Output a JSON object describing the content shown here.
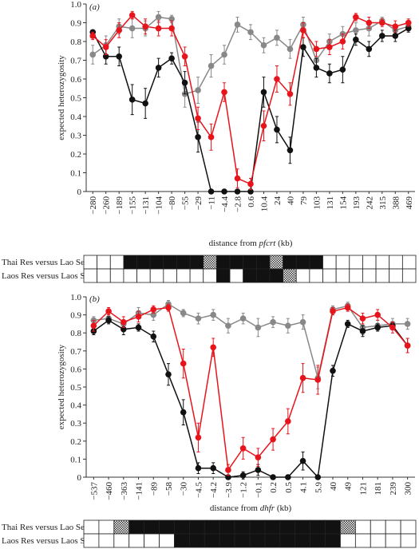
{
  "chart_data": [
    {
      "type": "line",
      "panel_label": "(a)",
      "ylabel": "expected heterozygosity",
      "xlabel": [
        "distance from ",
        "pfcrt",
        " (kb)"
      ],
      "categories": [
        "−280",
        "−260",
        "−189",
        "−155",
        "−131",
        "−104",
        "−80",
        "−55",
        "−29",
        "−11",
        "−4.4",
        "−2.8",
        "0.6",
        "10.4",
        "24",
        "40",
        "79",
        "103",
        "131",
        "154",
        "193",
        "242",
        "315",
        "388",
        "469"
      ],
      "ylim": [
        0,
        1
      ],
      "yticks": [
        0,
        0.1,
        0.2,
        0.3,
        0.4,
        0.5,
        0.6,
        0.7,
        0.8,
        0.9,
        {
          "value": 1,
          "label": "1.0"
        }
      ],
      "series": [
        {
          "color": "#888888",
          "values": [
            0.73,
            0.78,
            0.88,
            0.87,
            0.87,
            0.93,
            0.92,
            0.52,
            0.54,
            0.67,
            0.73,
            0.89,
            0.85,
            0.78,
            0.82,
            0.76,
            0.89,
            0.7,
            0.8,
            0.84,
            0.86,
            0.87,
            0.91,
            0.86,
            0.88
          ],
          "errors": [
            0.05,
            0.05,
            0.04,
            0.05,
            0.04,
            0.03,
            0.02,
            0.07,
            0.07,
            0.06,
            0.05,
            0.04,
            0.04,
            0.04,
            0.04,
            0.05,
            0.04,
            0.05,
            0.04,
            0.04,
            0.04,
            0.04,
            0.02,
            0.03,
            0.02
          ]
        },
        {
          "color": "#111111",
          "values": [
            0.85,
            0.72,
            0.72,
            0.49,
            0.47,
            0.66,
            0.71,
            0.58,
            0.29,
            0,
            0,
            0,
            0,
            0.53,
            0.33,
            0.22,
            0.77,
            0.66,
            0.63,
            0.65,
            0.81,
            0.76,
            0.83,
            0.83,
            0.87
          ],
          "errors": [
            0.01,
            0.04,
            0.05,
            0.08,
            0.08,
            0.05,
            0.03,
            0.06,
            0.08,
            0,
            0,
            0,
            0,
            0.08,
            0.07,
            0.07,
            0.05,
            0.05,
            0.05,
            0.07,
            0.03,
            0.04,
            0.03,
            0.03,
            0.02
          ]
        },
        {
          "color": "#e8141c",
          "values": [
            0.83,
            0.77,
            0.86,
            0.94,
            0.88,
            0.87,
            0.87,
            0.72,
            0.39,
            0.29,
            0.53,
            0.07,
            0.04,
            0.35,
            0.6,
            0.52,
            0.86,
            0.76,
            0.77,
            0.8,
            0.93,
            0.9,
            0.9,
            0.88,
            0.9
          ],
          "errors": [
            0.02,
            0.04,
            0.04,
            0.02,
            0.04,
            0.04,
            0.04,
            0.05,
            0.06,
            0.07,
            0.05,
            0.05,
            0.03,
            0.08,
            0.07,
            0.06,
            0.04,
            0.04,
            0.04,
            0.04,
            0.02,
            0.03,
            0.02,
            0.03,
            0.02
          ]
        }
      ],
      "rows": [
        {
          "label": "Thai Res versus Lao Sen",
          "cells": [
            "white",
            "white",
            "white",
            "black",
            "black",
            "black",
            "black",
            "black",
            "black",
            "hatched",
            "black",
            "black",
            "black",
            "black",
            "hatched",
            "black",
            "black",
            "black",
            "white",
            "white",
            "white",
            "white",
            "white",
            "white",
            "white"
          ]
        },
        {
          "label": "Laos Res versus Laos Sen",
          "cells": [
            "white",
            "white",
            "white",
            "white",
            "white",
            "white",
            "white",
            "white",
            "white",
            "white",
            "black",
            "white",
            "black",
            "black",
            "black",
            "hatched",
            "white",
            "white",
            "white",
            "white",
            "white",
            "white",
            "white",
            "white",
            "white"
          ]
        }
      ]
    },
    {
      "type": "line",
      "panel_label": "(b)",
      "ylabel": "expected heterozygosity",
      "xlabel": [
        "distance from ",
        "dhfr",
        " (kb)"
      ],
      "categories": [
        "−537",
        "−460",
        "−363",
        "−141",
        "−89",
        "−58",
        "−30",
        "−4.5",
        "−4.2",
        "−3.9",
        "−1.2",
        "−0.1",
        "0.2",
        "0.5",
        "4.1",
        "5.9",
        "40",
        "49",
        "121",
        "181",
        "239",
        "300"
      ],
      "ylim": [
        0,
        1
      ],
      "yticks": [
        0,
        0.1,
        0.2,
        0.3,
        0.4,
        0.5,
        0.6,
        0.7,
        0.8,
        0.9,
        {
          "value": 1,
          "label": "1.0"
        }
      ],
      "series": [
        {
          "color": "#888888",
          "values": [
            0.87,
            0.88,
            0.85,
            0.91,
            0.9,
            0.96,
            0.91,
            0.88,
            0.9,
            0.84,
            0.88,
            0.83,
            0.86,
            0.84,
            0.86,
            0.55,
            0.93,
            0.95,
            0.83,
            0.84,
            0.85,
            0.85
          ],
          "errors": [
            0.02,
            0.02,
            0.02,
            0.03,
            0.03,
            0.02,
            0.02,
            0.03,
            0.03,
            0.04,
            0.03,
            0.05,
            0.03,
            0.04,
            0.04,
            0.06,
            0.02,
            0.02,
            0.04,
            0.03,
            0.03,
            0.03
          ]
        },
        {
          "color": "#111111",
          "values": [
            0.81,
            0.87,
            0.82,
            0.83,
            0.78,
            0.57,
            0.36,
            0.05,
            0.05,
            0,
            0.01,
            0.04,
            0,
            0,
            0.09,
            0,
            0.59,
            0.85,
            0.81,
            0.83,
            0.84,
            0.73
          ],
          "errors": [
            0.02,
            0.02,
            0.03,
            0.02,
            0.03,
            0.06,
            0.07,
            0.03,
            0.03,
            0,
            0.02,
            0.03,
            0,
            0,
            0.05,
            0,
            0.03,
            0.02,
            0.03,
            0.02,
            0.02,
            0.04
          ]
        },
        {
          "color": "#e8141c",
          "values": [
            0.84,
            0.92,
            0.86,
            0.89,
            0.93,
            0.94,
            0.63,
            0.22,
            0.72,
            0.04,
            0.16,
            0.11,
            0.21,
            0.31,
            0.55,
            0.54,
            0.92,
            0.94,
            0.88,
            0.9,
            0.83,
            0.73
          ],
          "errors": [
            0.03,
            0.02,
            0.03,
            0.03,
            0.02,
            0.02,
            0.08,
            0.08,
            0.05,
            0.03,
            0.06,
            0.05,
            0.06,
            0.07,
            0.08,
            0.08,
            0.02,
            0.02,
            0.03,
            0.03,
            0.03,
            0.04
          ]
        }
      ],
      "rows": [
        {
          "label": "Thai Res versus Lao Sen",
          "cells": [
            "white",
            "white",
            "hatched",
            "black",
            "black",
            "black",
            "black",
            "black",
            "black",
            "black",
            "black",
            "black",
            "black",
            "black",
            "black",
            "black",
            "black",
            "hatched",
            "white",
            "white",
            "white",
            "white"
          ]
        },
        {
          "label": "Laos Res versus Laos Sen",
          "cells": [
            "white",
            "white",
            "white",
            "white",
            "white",
            "white",
            "black",
            "black",
            "black",
            "black",
            "black",
            "black",
            "black",
            "black",
            "black",
            "black",
            "black",
            "white",
            "white",
            "white",
            "white",
            "white"
          ]
        }
      ]
    }
  ]
}
